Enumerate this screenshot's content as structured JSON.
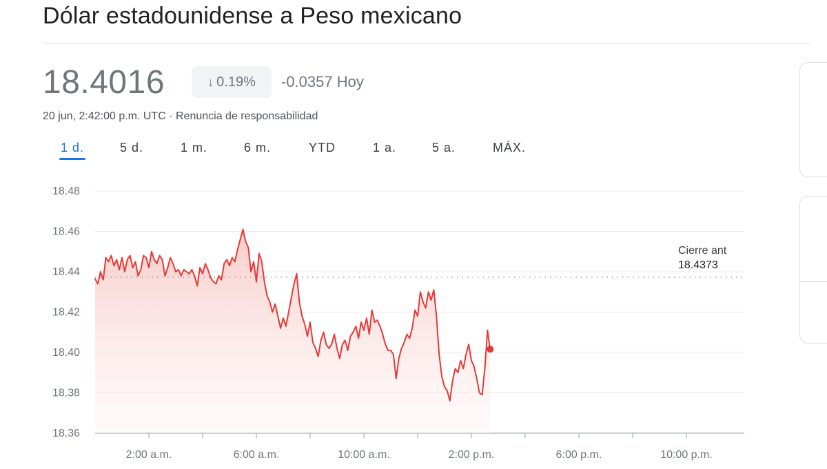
{
  "header": {
    "title": "Dólar estadounidense a Peso mexicano"
  },
  "quote": {
    "price": "18.4016",
    "change_percent": "0.19%",
    "change_direction_icon": "arrow-down-icon",
    "change_absolute": "-0.0357 Hoy",
    "timestamp": "20 jun, 2:42:00 p.m. UTC",
    "separator": "·",
    "disclaimer_link": "Renuncia de responsabilidad"
  },
  "range_tabs": [
    {
      "label": "1 d.",
      "active": true
    },
    {
      "label": "5 d.",
      "active": false
    },
    {
      "label": "1 m.",
      "active": false
    },
    {
      "label": "6 m.",
      "active": false
    },
    {
      "label": "YTD",
      "active": false
    },
    {
      "label": "1 a.",
      "active": false
    },
    {
      "label": "5 a.",
      "active": false
    },
    {
      "label": "MÁX.",
      "active": false
    }
  ],
  "colors": {
    "line": "#e53935",
    "fill_top": "#f8c9c6",
    "fill_bottom": "#fdf3f2",
    "active_tab": "#1a73e8",
    "grid": "#e8eaed"
  },
  "chart_data": {
    "type": "area",
    "y_ticks": [
      "18.48",
      "18.46",
      "18.44",
      "18.42",
      "18.40",
      "18.38",
      "18.36"
    ],
    "ylim": [
      18.36,
      18.48
    ],
    "x_ticks": [
      "2:00 a.m.",
      "4:00 a.m.",
      "6:00 a.m.",
      "8:00 a.m.",
      "10:00 a.m.",
      "12:00 p.m.",
      "2:00 p.m.",
      "4:00 p.m.",
      "6:00 p.m.",
      "8:00 p.m.",
      "10:00 p.m."
    ],
    "x_tick_labels_shown": [
      "2:00 a.m.",
      "6:00 a.m.",
      "10:00 a.m.",
      "2:00 p.m.",
      "6:00 p.m.",
      "10:00 p.m."
    ],
    "x_range_hours": [
      0,
      24
    ],
    "previous_close": {
      "label": "Cierre ant",
      "value_text": "18.4373",
      "value": 18.4373
    },
    "series": [
      {
        "x_hours": [
          0.0,
          0.1,
          0.2,
          0.3,
          0.4,
          0.5,
          0.6,
          0.7,
          0.8,
          0.9,
          1.0,
          1.1,
          1.2,
          1.3,
          1.4,
          1.5,
          1.6,
          1.7,
          1.8,
          1.9,
          2.0,
          2.1,
          2.2,
          2.3,
          2.4,
          2.5,
          2.6,
          2.7,
          2.8,
          2.9,
          3.0,
          3.1,
          3.2,
          3.3,
          3.4,
          3.5,
          3.6,
          3.7,
          3.8,
          3.9,
          4.0,
          4.1,
          4.2,
          4.3,
          4.4,
          4.5,
          4.6,
          4.7,
          4.8,
          4.9,
          5.0,
          5.1,
          5.2,
          5.3,
          5.4,
          5.5,
          5.6,
          5.7,
          5.8,
          5.9,
          6.0,
          6.1,
          6.2,
          6.3,
          6.4,
          6.5,
          6.6,
          6.7,
          6.8,
          6.9,
          7.0,
          7.1,
          7.2,
          7.3,
          7.4,
          7.5,
          7.6,
          7.7,
          7.8,
          7.9,
          8.0,
          8.1,
          8.2,
          8.3,
          8.4,
          8.5,
          8.6,
          8.7,
          8.8,
          8.9,
          9.0,
          9.1,
          9.2,
          9.3,
          9.4,
          9.5,
          9.6,
          9.7,
          9.8,
          9.9,
          10.0,
          10.1,
          10.2,
          10.3,
          10.4,
          10.5,
          10.6,
          10.7,
          10.8,
          10.9,
          11.0,
          11.1,
          11.2,
          11.3,
          11.4,
          11.5,
          11.6,
          11.7,
          11.8,
          11.9,
          12.0,
          12.1,
          12.2,
          12.3,
          12.4,
          12.5,
          12.6,
          12.7,
          12.8,
          12.9,
          13.0,
          13.1,
          13.2,
          13.3,
          13.4,
          13.5,
          13.6,
          13.7,
          13.8,
          13.9,
          14.0,
          14.1,
          14.2,
          14.3,
          14.4,
          14.5,
          14.6,
          14.7
        ],
        "values": [
          18.4365,
          18.434,
          18.44,
          18.436,
          18.447,
          18.445,
          18.448,
          18.443,
          18.446,
          18.441,
          18.447,
          18.44,
          18.446,
          18.448,
          18.442,
          18.445,
          18.438,
          18.441,
          18.448,
          18.447,
          18.442,
          18.45,
          18.446,
          18.444,
          18.448,
          18.446,
          18.438,
          18.442,
          18.447,
          18.444,
          18.44,
          18.441,
          18.438,
          18.441,
          18.44,
          18.439,
          18.441,
          18.438,
          18.433,
          18.442,
          18.439,
          18.444,
          18.441,
          18.437,
          18.435,
          18.434,
          18.438,
          18.436,
          18.444,
          18.446,
          18.443,
          18.447,
          18.445,
          18.451,
          18.456,
          18.461,
          18.455,
          18.452,
          18.44,
          18.445,
          18.435,
          18.449,
          18.445,
          18.435,
          18.428,
          18.425,
          18.42,
          18.424,
          18.418,
          18.412,
          18.417,
          18.413,
          18.42,
          18.427,
          18.434,
          18.439,
          18.425,
          18.418,
          18.414,
          18.408,
          18.415,
          18.405,
          18.402,
          18.398,
          18.406,
          18.41,
          18.404,
          18.402,
          18.404,
          18.409,
          18.402,
          18.397,
          18.404,
          18.406,
          18.401,
          18.408,
          18.41,
          18.413,
          18.407,
          18.415,
          18.411,
          18.417,
          18.409,
          18.421,
          18.415,
          18.416,
          18.413,
          18.409,
          18.404,
          18.401,
          18.401,
          18.399,
          18.387,
          18.397,
          18.402,
          18.405,
          18.409,
          18.407,
          18.412,
          18.421,
          18.418,
          18.43,
          18.425,
          18.422,
          18.43,
          18.426,
          18.431,
          18.418,
          18.399,
          18.388,
          18.383,
          18.381,
          18.376,
          18.386,
          18.392,
          18.39,
          18.396,
          18.392,
          18.399,
          18.404,
          18.396,
          18.393,
          18.387,
          18.38,
          18.379,
          18.392,
          18.411,
          18.401
        ],
        "last_value": 18.4016
      }
    ]
  }
}
